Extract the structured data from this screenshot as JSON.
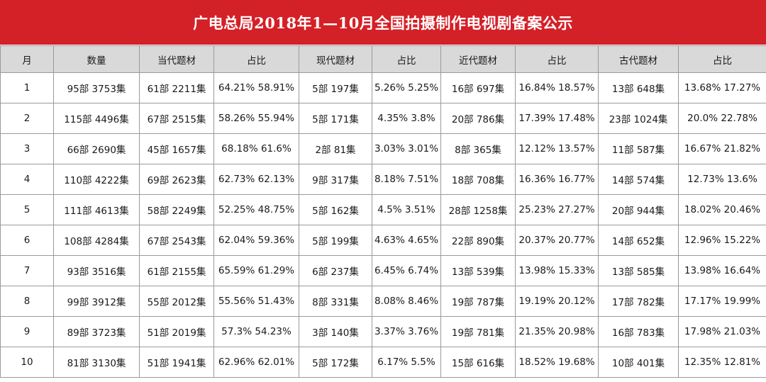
{
  "title": "广电总局2018年1—10月全国拍摄制作电视剧备案公示",
  "columns": [
    "月",
    "数量",
    "当代题材",
    "占比",
    "现代题材",
    "占比",
    "近代题材",
    "占比",
    "古代题材",
    "占比"
  ],
  "rows": [
    [
      "1",
      "95部 3753集",
      "61部 2211集",
      "64.21% 58.91%",
      "5部 197集",
      "5.26% 5.25%",
      "16部 697集",
      "16.84% 18.57%",
      "13部 648集",
      "13.68% 17.27%"
    ],
    [
      "2",
      "115部 4496集",
      "67部 2515集",
      "58.26% 55.94%",
      "5部 171集",
      "4.35% 3.8%",
      "20部 786集",
      "17.39% 17.48%",
      "23部 1024集",
      "20.0% 22.78%"
    ],
    [
      "3",
      "66部 2690集",
      "45部 1657集",
      "68.18% 61.6%",
      "2部 81集",
      "3.03% 3.01%",
      "8部 365集",
      "12.12% 13.57%",
      "11部 587集",
      "16.67% 21.82%"
    ],
    [
      "4",
      "110部 4222集",
      "69部 2623集",
      "62.73% 62.13%",
      "9部 317集",
      "8.18% 7.51%",
      "18部 708集",
      "16.36% 16.77%",
      "14部 574集",
      "12.73% 13.6%"
    ],
    [
      "5",
      "111部 4613集",
      "58部 2249集",
      "52.25% 48.75%",
      "5部 162集",
      "4.5% 3.51%",
      "28部 1258集",
      "25.23% 27.27%",
      "20部 944集",
      "18.02% 20.46%"
    ],
    [
      "6",
      "108部 4284集",
      "67部 2543集",
      "62.04% 59.36%",
      "5部 199集",
      "4.63% 4.65%",
      "22部 890集",
      "20.37% 20.77%",
      "14部 652集",
      "12.96% 15.22%"
    ],
    [
      "7",
      "93部 3516集",
      "61部 2155集",
      "65.59% 61.29%",
      "6部 237集",
      "6.45% 6.74%",
      "13部 539集",
      "13.98% 15.33%",
      "13部 585集",
      "13.98% 16.64%"
    ],
    [
      "8",
      "99部 3912集",
      "55部 2012集",
      "55.56% 51.43%",
      "8部 331集",
      "8.08% 8.46%",
      "19部 787集",
      "19.19% 20.12%",
      "17部 782集",
      "17.17% 19.99%"
    ],
    [
      "9",
      "89部 3723集",
      "51部 2019集",
      "57.3% 54.23%",
      "3部 140集",
      "3.37% 3.76%",
      "19部 781集",
      "21.35% 20.98%",
      "16部 783集",
      "17.98% 21.03%"
    ],
    [
      "10",
      "81部 3130集",
      "51部 1941集",
      "62.96% 62.01%",
      "5部 172集",
      "6.17% 5.5%",
      "15部 616集",
      "18.52% 19.68%",
      "10部 401集",
      "12.35% 12.81%"
    ]
  ],
  "colors": {
    "title_bg": "#d42027",
    "header_bg": "#d9d9d9",
    "border": "#9a9a9a"
  }
}
